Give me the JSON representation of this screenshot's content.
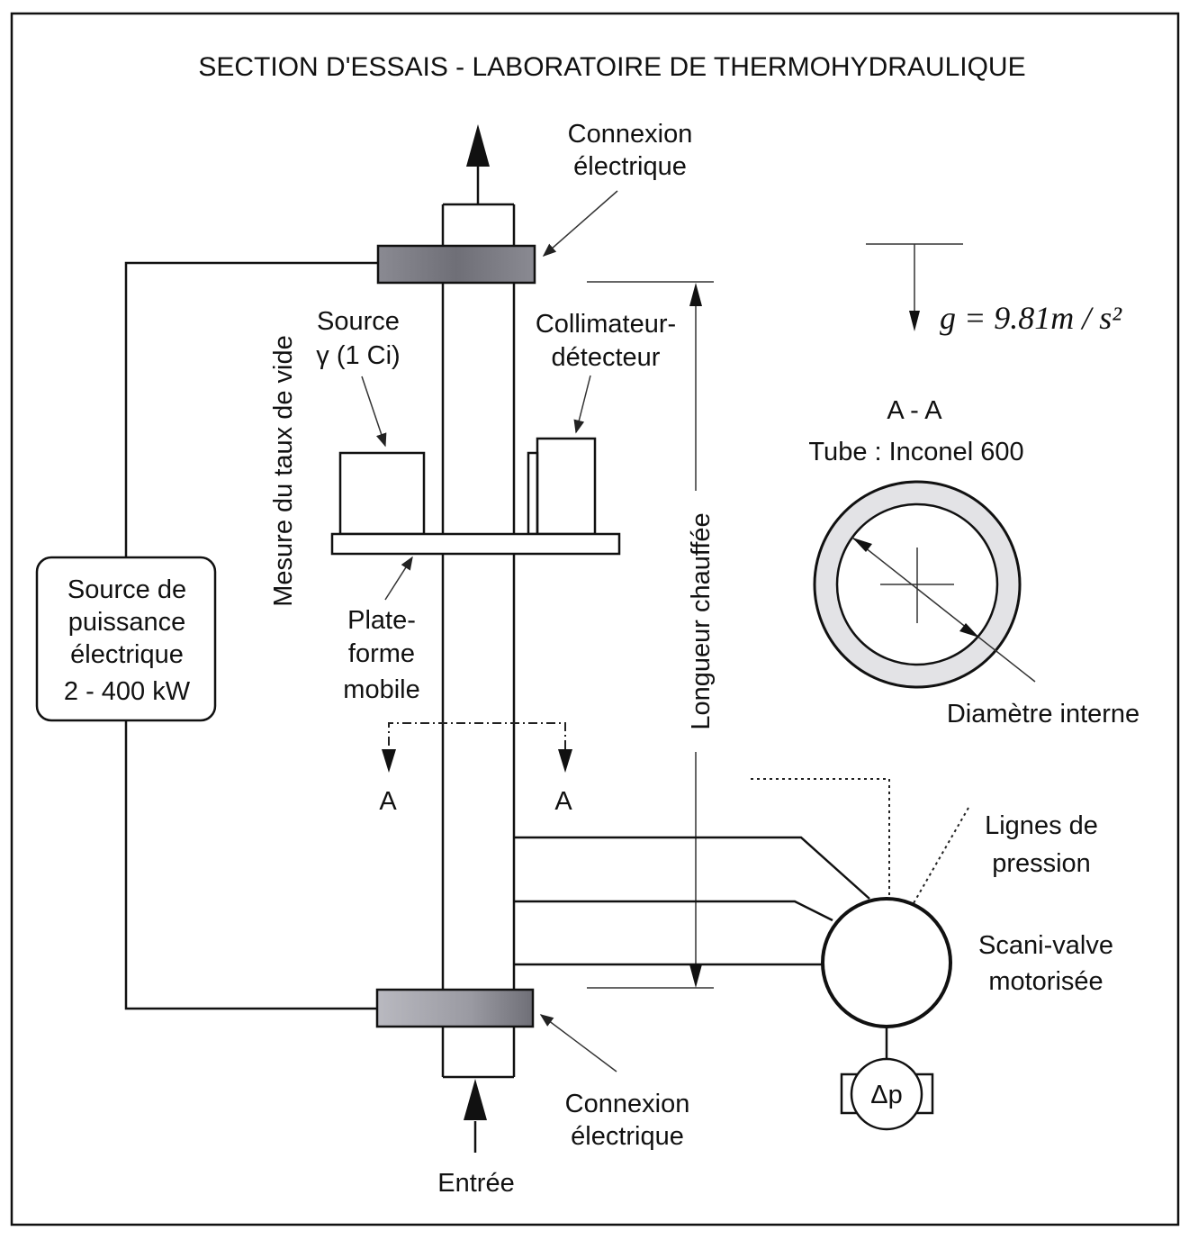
{
  "title": "SECTION D'ESSAIS - LABORATOIRE DE THERMOHYDRAULIQUE",
  "labels": {
    "connexion_top_1": "Connexion",
    "connexion_top_2": "électrique",
    "gravity": "g = 9.81m / s²",
    "source_1": "Source",
    "source_2": "γ (1 Ci)",
    "collimateur_1": "Collimateur-",
    "collimateur_2": "détecteur",
    "mesure": "Mesure du taux de vide",
    "section_aa": "A - A",
    "tube": "Tube : Inconel 600",
    "power_1": "Source de",
    "power_2": "puissance",
    "power_3": "électrique",
    "power_4": "2 - 400 kW",
    "plate_1": "Plate-",
    "plate_2": "forme",
    "plate_3": "mobile",
    "longueur": "Longueur chauffée",
    "diametre": "Diamètre interne",
    "a_left": "A",
    "a_right": "A",
    "lignes_1": "Lignes de",
    "lignes_2": "pression",
    "scani_1": "Scani-valve",
    "scani_2": "motorisée",
    "dp": "Δp",
    "connexion_bot_1": "Connexion",
    "connexion_bot_2": "électrique",
    "entree": "Entrée"
  },
  "colors": {
    "connector_fill": "#7d7d84",
    "line": "#111111"
  }
}
